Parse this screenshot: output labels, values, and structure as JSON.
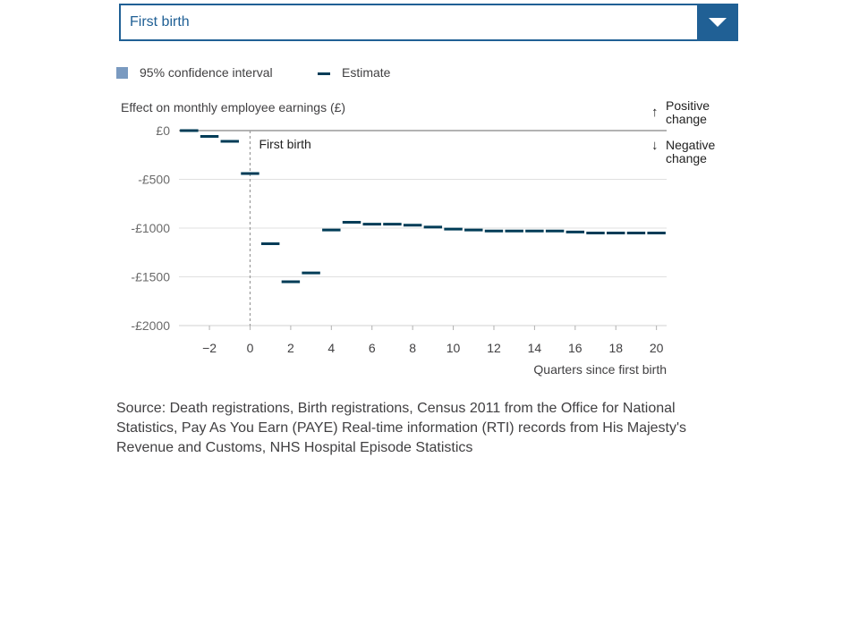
{
  "dropdown": {
    "selected": "First birth"
  },
  "legend": {
    "ci_label": "95% confidence interval",
    "estimate_label": "Estimate",
    "colors": {
      "ci": "#7a9ac0",
      "estimate": "#003c57"
    }
  },
  "direction": {
    "positive_line1": "Positive",
    "positive_line2": "change",
    "negative_line1": "Negative",
    "negative_line2": "change",
    "up_icon": "arrow-up-icon",
    "down_icon": "arrow-down-icon"
  },
  "source_text": "Source: Death registrations, Birth registrations, Census 2011 from the Office for National Statistics, Pay As You Earn (PAYE) Real-time information (RTI) records from His Majesty's Revenue and Customs, NHS Hospital Episode Statistics",
  "chart_data": {
    "type": "scatter",
    "title": "",
    "ylabel": "Effect on monthly employee earnings (£)",
    "xlabel": "Quarters since first birth",
    "xlim": [
      -3.5,
      20.5
    ],
    "ylim": [
      -2000,
      0
    ],
    "x_ticks": [
      -2,
      0,
      2,
      4,
      6,
      8,
      10,
      12,
      14,
      16,
      18,
      20
    ],
    "x_tick_labels": [
      "−2",
      "0",
      "2",
      "4",
      "6",
      "8",
      "10",
      "12",
      "14",
      "16",
      "18",
      "20"
    ],
    "y_ticks": [
      0,
      -500,
      -1000,
      -1500,
      -2000
    ],
    "y_tick_labels": [
      "£0",
      "-£500",
      "-£1000",
      "-£1500",
      "-£2000"
    ],
    "reference_line": {
      "x": 0,
      "label": "First birth"
    },
    "grid": true,
    "series": [
      {
        "name": "Estimate",
        "x": [
          -3,
          -2,
          -1,
          0,
          1,
          2,
          3,
          4,
          5,
          6,
          7,
          8,
          9,
          10,
          11,
          12,
          13,
          14,
          15,
          16,
          17,
          18,
          19,
          20
        ],
        "y": [
          0,
          -60,
          -110,
          -440,
          -1160,
          -1550,
          -1460,
          -1020,
          -940,
          -960,
          -960,
          -970,
          -990,
          -1010,
          -1020,
          -1030,
          -1030,
          -1030,
          -1030,
          -1040,
          -1050,
          -1050,
          -1050,
          -1050
        ]
      }
    ]
  }
}
